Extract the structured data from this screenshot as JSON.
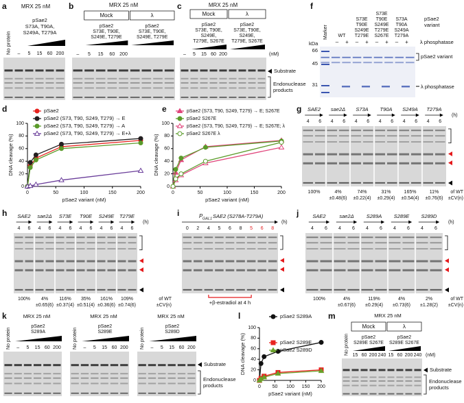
{
  "panels": {
    "a": {
      "label": "a",
      "header": "MRX 25 nM",
      "no_protein": "No protein",
      "protein": [
        "pSae2",
        "S73A, T90A,",
        "S249A, T279A"
      ],
      "lanes": [
        "–",
        "5",
        "15",
        "60",
        "200"
      ]
    },
    "b": {
      "label": "b",
      "header": "MRX 25 nM",
      "groups": [
        {
          "name": "Mock",
          "protein": [
            "pSae2",
            "S73E, T90E,",
            "S249E, T279E"
          ]
        },
        {
          "name": "λ",
          "protein": [
            "pSae2",
            "S73E, T90E,",
            "S249E, T279E"
          ]
        }
      ],
      "lanes": [
        "–",
        "5",
        "15",
        "60",
        "200"
      ]
    },
    "c": {
      "label": "c",
      "header": "MRX 25 nM",
      "groups": [
        {
          "name": "Mock",
          "protein": [
            "pSae2",
            "S73E, T90E,",
            "S249E,",
            "T279E, S267E"
          ]
        },
        {
          "name": "λ",
          "protein": [
            "pSae2",
            "S73E, T90E,",
            "S249E,",
            "T279E, S267E"
          ]
        }
      ],
      "lanes": [
        "–",
        "5",
        "15",
        "60",
        "200"
      ],
      "unit": "(nM)",
      "substrate": "Substrate",
      "products": [
        "Endonuclease",
        "products"
      ]
    },
    "f": {
      "label": "f",
      "kda": "kDa",
      "marker": "Marker",
      "variants": [
        [
          "WT"
        ],
        [
          "S73E",
          "T90E",
          "S249E",
          "T279E"
        ],
        [
          "S73E",
          "T90E",
          "S249E",
          "T279E",
          "S267E"
        ],
        [
          "S73A",
          "T90A",
          "S249A",
          "T279A"
        ]
      ],
      "variant_label": [
        "pSae2",
        "variant"
      ],
      "signs": [
        "–",
        "+",
        "–",
        "+",
        "–",
        "+",
        "–",
        "+"
      ],
      "phosphatase": "λ phosphatase",
      "sizes": [
        "66",
        "45",
        "31"
      ],
      "band_variant": "pSae2 variant",
      "band_phosphatase": "λ phosphatase"
    },
    "g": {
      "label": "g",
      "strains": [
        "SAE2",
        "sae2Δ",
        "S73A",
        "T90A",
        "S249A",
        "T279A"
      ],
      "times": [
        "4",
        "6"
      ],
      "unit": "(h)",
      "quant": [
        [
          "100%"
        ],
        [
          "4%",
          "±0.48(6)"
        ],
        [
          "74%",
          "±0.22(4)"
        ],
        [
          "31%",
          "±0.29(4)"
        ],
        [
          "165%",
          "±0.54(4)"
        ],
        [
          "11%",
          "±0.76(6)"
        ]
      ],
      "footer": [
        "of WT",
        "±CV(n)"
      ]
    },
    "h": {
      "label": "h",
      "strains": [
        "SAE2",
        "sae2Δ",
        "S73E",
        "T90E",
        "S249E",
        "T279E"
      ],
      "times": [
        "4",
        "6"
      ],
      "unit": "(h)",
      "quant": [
        [
          "100%"
        ],
        [
          "4%",
          "±0.65(6)"
        ],
        [
          "116%",
          "±0.37(4)"
        ],
        [
          "35%",
          "±0.51(4)"
        ],
        [
          "161%",
          "±0.36(6)"
        ],
        [
          "109%",
          "±0.74(6)"
        ]
      ],
      "footer": [
        "of WT",
        "±CV(n)"
      ]
    },
    "i": {
      "label": "i",
      "promoter": "P",
      "promoter_sub": "GAL1",
      "construct": "SAE2 (S278A-T279A)",
      "times": [
        "0",
        "2",
        "4",
        "5",
        "6",
        "8"
      ],
      "times_estradiol": [
        "5",
        "6",
        "8"
      ],
      "unit": "(h)",
      "note": "+β-estradiol at 4 h"
    },
    "j": {
      "label": "j",
      "strains": [
        "SAE2",
        "sae2Δ",
        "S289A",
        "S289E",
        "S289D"
      ],
      "times": [
        "4",
        "6"
      ],
      "unit": "(h)",
      "quant": [
        [
          "100%"
        ],
        [
          "4%",
          "±0.67(6)"
        ],
        [
          "119%",
          "±0.29(4)"
        ],
        [
          "4%",
          "±0.73(6)"
        ],
        [
          "2%",
          "±1.28(2)"
        ]
      ],
      "footer": [
        "of WT",
        "±CV(n)"
      ]
    },
    "k": {
      "label": "k",
      "gels": [
        {
          "header": "MRX 25 nM",
          "no_protein": "No protein",
          "protein": [
            "pSae2",
            "S289A"
          ],
          "lanes": [
            "–",
            "5",
            "15",
            "60",
            "200"
          ]
        },
        {
          "header": "MRX 25 nM",
          "no_protein": "No protein",
          "protein": [
            "pSae2",
            "S289E"
          ],
          "lanes": [
            "–",
            "5",
            "15",
            "60",
            "200"
          ]
        },
        {
          "header": "MRX 25 nM",
          "no_protein": "No protein",
          "protein": [
            "pSae2",
            "S289D"
          ],
          "lanes": [
            "–",
            "5",
            "15",
            "60",
            "200"
          ]
        }
      ],
      "substrate": "Substrate",
      "products": [
        "Endonuclease",
        "products"
      ]
    },
    "m": {
      "label": "m",
      "header": "MRX 25 nM",
      "no_protein": "No protein",
      "groups": [
        {
          "name": "Mock",
          "protein": [
            "pSae2",
            "S289E S267E"
          ],
          "lanes": [
            "15",
            "60",
            "200",
            "240"
          ]
        },
        {
          "name": "λ",
          "protein": [
            "pSae2",
            "S289E S267E"
          ],
          "lanes": [
            "15",
            "60",
            "200",
            "240"
          ]
        }
      ],
      "unit": "(nM)",
      "substrate": "Substrate",
      "products": [
        "Endonuclease",
        "products"
      ]
    }
  },
  "chart_data": [
    {
      "type": "line",
      "panel": "d",
      "x": [
        0,
        5,
        15,
        60,
        200
      ],
      "xlim": [
        0,
        200
      ],
      "xticks": [
        0,
        50,
        100,
        150,
        200
      ],
      "ylim": [
        0,
        100
      ],
      "yticks": [
        0,
        20,
        40,
        60,
        80,
        100
      ],
      "xlabel": "pSae2 variant (nM)",
      "ylabel": "DNA cleavage (%)",
      "series": [
        {
          "name": "pSae2",
          "color": "#e8231f",
          "marker": "circle",
          "filled": true,
          "values": [
            0,
            33,
            45,
            63,
            73
          ]
        },
        {
          "name": "pSae2 (S73, T90, S249, T279) → E",
          "color": "#231f20",
          "marker": "circle",
          "filled": true,
          "values": [
            0,
            38,
            50,
            67,
            76
          ]
        },
        {
          "name": "pSae2 (S73, T90, S249, T279) → A",
          "color": "#5b9b2a",
          "marker": "circle",
          "filled": true,
          "values": [
            0,
            30,
            42,
            60,
            69
          ]
        },
        {
          "name": "pSae2 (S73, T90, S249, T279) → E+λ",
          "color": "#6a3d9a",
          "marker": "triangle",
          "filled": false,
          "values": [
            0,
            1,
            3,
            10,
            25
          ]
        }
      ]
    },
    {
      "type": "line",
      "panel": "e",
      "x": [
        0,
        5,
        15,
        60,
        200
      ],
      "xlim": [
        0,
        200
      ],
      "xticks": [
        0,
        50,
        100,
        150,
        200
      ],
      "ylim": [
        0,
        100
      ],
      "yticks": [
        0,
        20,
        40,
        60,
        80,
        100
      ],
      "xlabel": "pSae2 variant (nM)",
      "ylabel": "DNA cleavage (%)",
      "series": [
        {
          "name": "pSae2 (S73, T90, S249, T279) → E; S267E",
          "color": "#e0457b",
          "marker": "triangle",
          "filled": true,
          "values": [
            0,
            22,
            42,
            63,
            73
          ]
        },
        {
          "name": "pSae2 S267E",
          "color": "#5b9b2a",
          "marker": "circle",
          "filled": true,
          "values": [
            0,
            27,
            45,
            62,
            72
          ]
        },
        {
          "name": "pSae2 (S73, T90, S249, T279) → E; S267E; λ",
          "color": "#e0457b",
          "marker": "triangle",
          "filled": false,
          "values": [
            0,
            10,
            18,
            37,
            62
          ]
        },
        {
          "name": "pSae2 S267E λ",
          "color": "#5b9b2a",
          "marker": "circle",
          "filled": false,
          "values": [
            0,
            12,
            20,
            40,
            70
          ]
        }
      ]
    },
    {
      "type": "line",
      "panel": "l",
      "x": [
        0,
        5,
        15,
        60,
        200
      ],
      "xlim": [
        0,
        200
      ],
      "xticks": [
        0,
        50,
        100,
        150,
        200
      ],
      "ylim": [
        0,
        100
      ],
      "yticks": [
        0,
        20,
        40,
        60,
        80,
        100
      ],
      "xlabel": "pSae2 variant (nM)",
      "ylabel": "DNA cleavage (%)",
      "series": [
        {
          "name": "pSae2 S289A",
          "color": "#111111",
          "marker": "circle",
          "filled": true,
          "values": [
            0,
            32,
            45,
            55,
            72
          ]
        },
        {
          "name": "pSae2 S289E",
          "color": "#e8231f",
          "marker": "square",
          "filled": true,
          "values": [
            0,
            4,
            8,
            15,
            20
          ]
        },
        {
          "name": "pSae2 S289D",
          "color": "#6aa12a",
          "marker": "triangle",
          "filled": true,
          "values": [
            0,
            3,
            6,
            13,
            18
          ]
        }
      ]
    }
  ]
}
